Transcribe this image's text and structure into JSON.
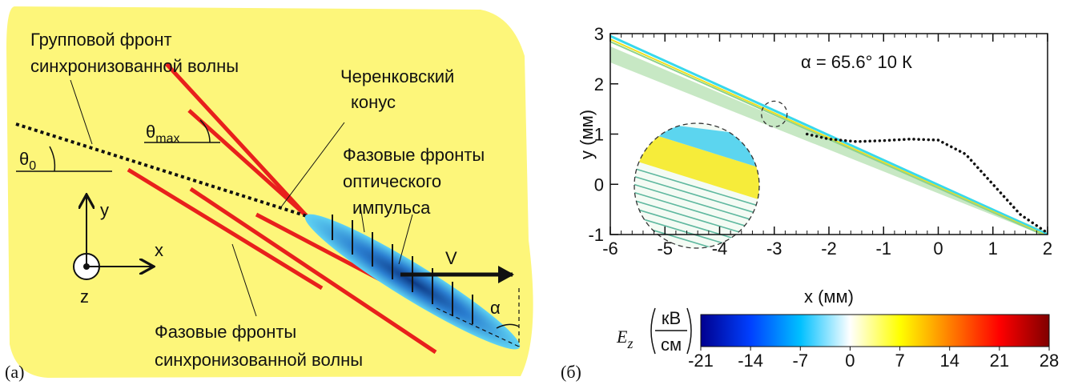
{
  "panel_a": {
    "label": "(а)",
    "group_front": [
      "Групповой фронт",
      "синхронизованной волны"
    ],
    "cherenkov_cone": [
      "Черенковский",
      "конус"
    ],
    "theta_max": {
      "symbol": "θ",
      "subscript": "max"
    },
    "theta_0": {
      "symbol": "θ",
      "subscript": "0"
    },
    "optical_fronts": [
      "Фазовые фронты",
      "оптического",
      "импульса"
    ],
    "axis_y": "y",
    "axis_x": "x",
    "axis_z": "z",
    "velocity": "V",
    "alpha": "α",
    "wave_fronts": [
      "Фазовые фронты",
      "синхронизованной волны"
    ]
  },
  "chart_data": {
    "type": "field",
    "panel_label": "(б)",
    "annotation": "α = 65.6°  10 К",
    "x_label": "x (мм)",
    "y_label": "y (мм)",
    "xlim": [
      -6,
      2
    ],
    "xticks": [
      -6,
      -5,
      -4,
      -3,
      -2,
      -1,
      0,
      1,
      2
    ],
    "ylim": [
      -1,
      3
    ],
    "yticks": [
      -1,
      0,
      1,
      2,
      3
    ],
    "curve": {
      "color": "#111111",
      "x": [
        -2.4,
        -2,
        -1.5,
        -1,
        -0.5,
        0,
        0.5,
        1,
        1.5,
        2
      ],
      "y": [
        1.0,
        0.9,
        0.85,
        0.87,
        0.9,
        0.88,
        0.6,
        0.0,
        -0.6,
        -0.97
      ]
    },
    "colorbar": {
      "symbol": "E",
      "subscript": "z",
      "unit_top": "кВ",
      "unit_bottom": "см",
      "clim": [
        -21,
        28
      ],
      "cticks": [
        -21,
        -14,
        -7,
        0,
        7,
        14,
        21,
        28
      ],
      "colormap": [
        "#00008f",
        "#0040ff",
        "#00c0ff",
        "#ffffff",
        "#ffff00",
        "#ff8000",
        "#ff0000",
        "#800000"
      ]
    }
  }
}
